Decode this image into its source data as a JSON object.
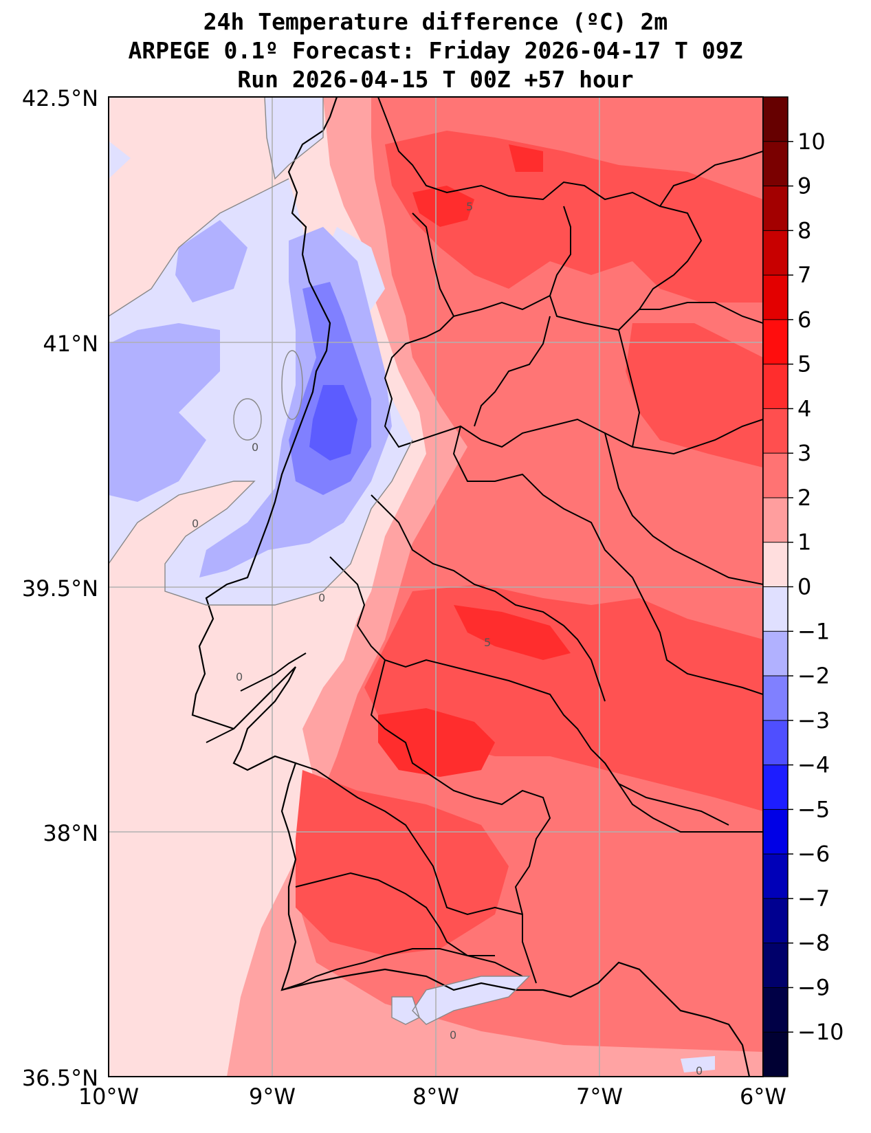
{
  "title": {
    "line1": "24h Temperature difference (ºC) 2m",
    "line2": "ARPEGE 0.1º Forecast: Friday 2026-04-17 T 09Z",
    "line3": "Run 2026-04-15 T 00Z +57 hour"
  },
  "axes": {
    "lat_labels": [
      "42.5°N",
      "41°N",
      "39.5°N",
      "38°N",
      "36.5°N"
    ],
    "lon_labels": [
      "10°W",
      "9°W",
      "8°W",
      "7°W",
      "6°W"
    ]
  },
  "colorbar": {
    "labels": [
      "10",
      "9",
      "8",
      "7",
      "6",
      "5",
      "4",
      "3",
      "2",
      "1",
      "0",
      "−1",
      "−2",
      "−3",
      "−4",
      "−5",
      "−6",
      "−7",
      "−8",
      "−9",
      "−10"
    ],
    "colors": [
      "#7a0000",
      "#a30000",
      "#c80000",
      "#e30000",
      "#ff0d0d",
      "#ff2d2d",
      "#ff4f4f",
      "#ff7373",
      "#ff9e9e",
      "#ffdede",
      "#e0e0ff",
      "#b1b1ff",
      "#8080ff",
      "#4f4fff",
      "#1d1dff",
      "#0000e6",
      "#0000b8",
      "#000090",
      "#00006a",
      "#000046"
    ]
  },
  "contour_labels": [
    "5",
    "5",
    "0",
    "0",
    "0",
    "0",
    "0",
    "0"
  ],
  "colors": {
    "land_base": "#ff8f8f",
    "sea_base": "#ffd9d9"
  }
}
